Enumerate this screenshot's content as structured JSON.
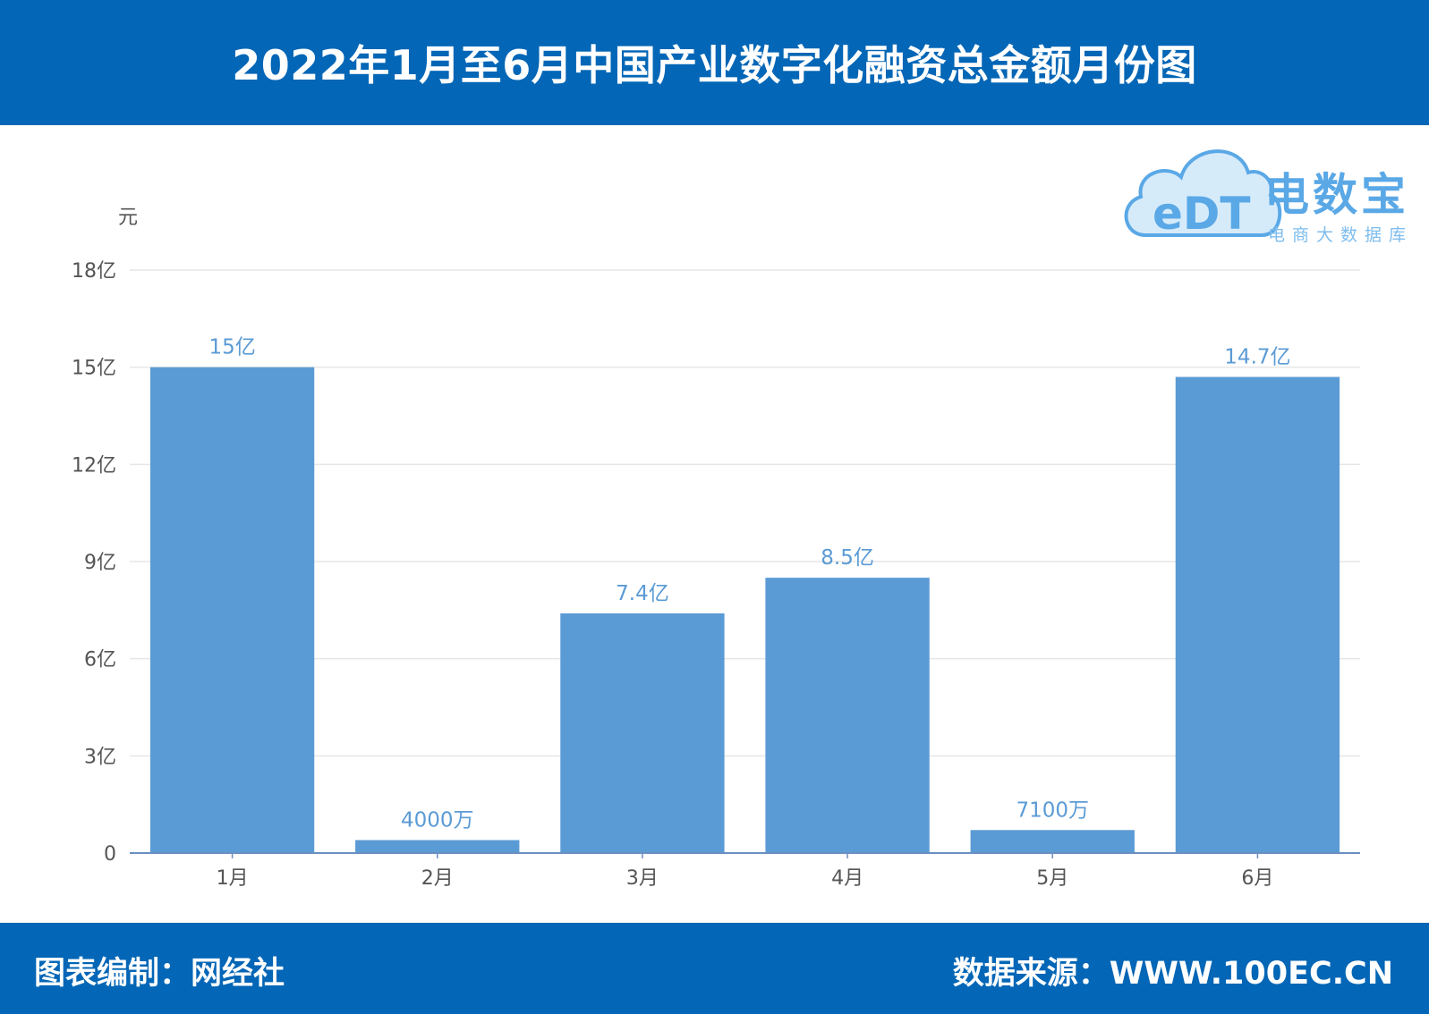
{
  "header": {
    "title": "2022年1月至6月中国产业数字化融资总金额月份图"
  },
  "footer": {
    "left": "图表编制：网经社",
    "right": "数据来源：WWW.100EC.CN"
  },
  "logo": {
    "mark": "eDT",
    "name": "电数宝",
    "subtitle": "电商大数据库",
    "icon": "cloud-logo-icon"
  },
  "colors": {
    "header_bg": "#0366b6",
    "bar": "#5b9bd5",
    "label": "#5b9bd5",
    "axis_text": "#555555",
    "grid": "#e6e6e6"
  },
  "chart_data": {
    "type": "bar",
    "title": "",
    "ylabel": "元",
    "xlabel": "",
    "categories": [
      "1月",
      "2月",
      "3月",
      "4月",
      "5月",
      "6月"
    ],
    "values": [
      1500000000,
      40000000,
      740000000,
      850000000,
      71000000,
      1470000000
    ],
    "data_labels": [
      "15亿",
      "4000万",
      "7.4亿",
      "8.5亿",
      "7100万",
      "14.7亿"
    ],
    "ylim": [
      0,
      1800000000
    ],
    "yticks": [
      0,
      300000000,
      600000000,
      900000000,
      1200000000,
      1500000000,
      1800000000
    ],
    "ytick_labels": [
      "0",
      "3亿",
      "6亿",
      "9亿",
      "12亿",
      "15亿",
      "18亿"
    ],
    "grid": true,
    "legend": "none"
  }
}
